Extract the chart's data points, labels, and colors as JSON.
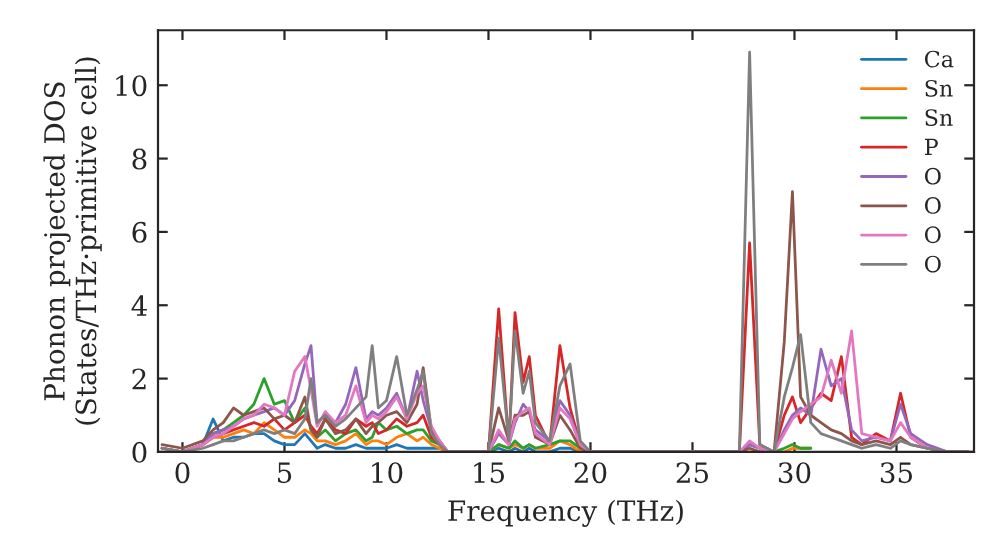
{
  "chart_data": {
    "type": "line",
    "xlabel": "Frequency (THz)",
    "ylabel": "Phonon projected DOS\n(States/THz·primitive cell)",
    "x": [
      -1,
      0,
      1,
      1.5,
      2,
      2.5,
      3,
      3.5,
      4,
      4.5,
      5,
      5.5,
      6,
      6.3,
      6.6,
      7,
      7.5,
      8,
      8.5,
      9,
      9.3,
      9.6,
      10,
      10.5,
      11,
      11.5,
      11.8,
      12.2,
      12.6,
      13,
      13.5,
      14,
      15,
      15.5,
      16,
      16.3,
      16.7,
      17,
      17.3,
      18,
      18.5,
      19,
      19.5,
      20,
      27.3,
      27.8,
      28.3,
      29,
      29.5,
      29.9,
      30.3,
      30.8,
      31.3,
      31.8,
      32.3,
      32.8,
      33.3,
      34,
      34.7,
      35.2,
      35.7,
      36.5,
      37.5,
      38.5
    ],
    "series": [
      {
        "name": "Ca",
        "color": "#1f77b4",
        "x": [
          -1,
          0,
          1,
          1.5,
          2,
          2.5,
          3,
          3.5,
          4,
          4.5,
          5,
          5.5,
          6,
          6.3,
          6.6,
          7,
          7.5,
          8,
          8.5,
          9,
          9.3,
          9.6,
          10,
          10.5,
          11,
          11.5,
          11.8,
          12.2,
          12.6,
          13,
          13.5,
          14,
          15,
          15.5,
          16,
          16.3,
          16.7,
          17,
          17.3,
          18,
          18.5,
          19,
          19.5,
          20
        ],
        "values": [
          0.1,
          0,
          0.2,
          0.9,
          0.3,
          0.4,
          0.4,
          0.5,
          0.5,
          0.3,
          0.2,
          0.2,
          0.5,
          0.3,
          0.1,
          0.2,
          0.1,
          0.1,
          0.2,
          0.1,
          0.1,
          0.1,
          0.1,
          0.2,
          0.1,
          0.1,
          0.1,
          0.1,
          0.1,
          0,
          0,
          0,
          0,
          0.1,
          0,
          0.1,
          0,
          0.1,
          0,
          0,
          0.1,
          0.1,
          0,
          0
        ]
      },
      {
        "name": "Sn",
        "color": "#ff7f0e",
        "x": [
          1,
          1.5,
          2,
          2.5,
          3,
          3.5,
          4,
          4.5,
          5,
          5.5,
          6,
          6.3,
          6.6,
          7,
          7.5,
          8,
          8.5,
          9,
          9.3,
          9.6,
          10,
          10.5,
          11,
          11.5,
          11.8,
          12.2,
          12.6,
          13,
          13.5,
          14,
          15,
          15.5,
          16,
          16.3,
          16.7,
          17,
          17.3,
          18,
          18.5,
          19,
          19.5,
          20,
          27.3,
          27.8,
          28.3,
          29,
          29.5,
          29.9,
          30.3,
          30.8
        ],
        "values": [
          0.2,
          0.4,
          0.4,
          0.5,
          0.6,
          0.5,
          0.8,
          0.6,
          0.4,
          0.4,
          0.6,
          0.5,
          0.3,
          0.3,
          0.2,
          0.3,
          0.5,
          0.2,
          0.3,
          0.3,
          0.2,
          0.4,
          0.5,
          0.3,
          0.4,
          0.2,
          0.1,
          0,
          0,
          0,
          0,
          0.2,
          0.1,
          0.2,
          0.1,
          0.2,
          0.1,
          0.1,
          0.3,
          0.2,
          0,
          0,
          0,
          0,
          0,
          0,
          0,
          0.1,
          0.1,
          0.1
        ]
      },
      {
        "name": "Sn",
        "color": "#2ca02c",
        "x": [
          1,
          1.5,
          2,
          2.5,
          3,
          3.5,
          4,
          4.5,
          5,
          5.5,
          6,
          6.3,
          6.6,
          7,
          7.5,
          8,
          8.5,
          9,
          9.3,
          9.6,
          10,
          10.5,
          11,
          11.5,
          11.8,
          12.2,
          12.6,
          13,
          13.5,
          14,
          15,
          15.5,
          16,
          16.3,
          16.7,
          17,
          17.3,
          18,
          18.5,
          19,
          19.5,
          20,
          27.3,
          27.8,
          28.3,
          29,
          29.5,
          29.9,
          30.3,
          30.8
        ],
        "values": [
          0.2,
          0.5,
          0.6,
          0.8,
          1.0,
          1.3,
          2.0,
          1.3,
          1.4,
          0.8,
          1.2,
          0.6,
          0.4,
          0.6,
          0.3,
          0.5,
          0.6,
          0.3,
          0.4,
          0.8,
          0.6,
          0.7,
          0.5,
          0.6,
          0.6,
          0.3,
          0.2,
          0,
          0,
          0,
          0,
          0.2,
          0.1,
          0.3,
          0.1,
          0.2,
          0.1,
          0.2,
          0.3,
          0.3,
          0.1,
          0,
          0,
          0.2,
          0.1,
          0,
          0.1,
          0.2,
          0.1,
          0.1
        ]
      },
      {
        "name": "P",
        "color": "#d62728",
        "values": [
          0.1,
          0,
          0.2,
          0.4,
          0.5,
          0.6,
          0.7,
          0.8,
          0.7,
          0.9,
          0.6,
          0.8,
          1.0,
          0.7,
          0.5,
          0.9,
          0.6,
          0.5,
          0.9,
          0.7,
          0.8,
          0.5,
          0.6,
          0.9,
          0.7,
          0.8,
          1.0,
          0.4,
          0.2,
          0,
          0,
          0,
          0,
          3.9,
          0.2,
          3.8,
          1.9,
          2.6,
          1.0,
          0.2,
          2.9,
          1.2,
          0.2,
          0,
          0,
          5.7,
          0.2,
          0,
          1.0,
          1.5,
          0.8,
          1.2,
          1.6,
          1.4,
          2.6,
          0.4,
          0.2,
          0.5,
          0.3,
          1.6,
          0.4,
          0.1,
          0,
          0
        ]
      },
      {
        "name": "O",
        "color": "#9467bd",
        "values": [
          0.1,
          0,
          0.2,
          0.5,
          0.6,
          0.7,
          0.9,
          1.0,
          1.1,
          1.2,
          1.0,
          1.4,
          2.4,
          2.9,
          0.8,
          1.0,
          0.8,
          1.3,
          2.3,
          0.9,
          1.1,
          1.0,
          1.2,
          1.6,
          0.9,
          2.2,
          1.4,
          0.6,
          0.3,
          0,
          0,
          0,
          0,
          0.5,
          0.2,
          0.8,
          1.3,
          1.1,
          0.6,
          0.3,
          1.4,
          1.0,
          0.2,
          0,
          0,
          0.2,
          0.1,
          0,
          0.6,
          1.0,
          1.2,
          1.0,
          2.8,
          1.8,
          2.0,
          0.6,
          0.3,
          0.4,
          0.3,
          1.3,
          0.5,
          0.2,
          0,
          0
        ]
      },
      {
        "name": "O",
        "color": "#8c564b",
        "values": [
          0.2,
          0.1,
          0.3,
          0.6,
          0.8,
          1.2,
          1.0,
          1.1,
          1.2,
          0.9,
          1.0,
          0.8,
          1.5,
          0.6,
          0.4,
          0.9,
          0.5,
          0.6,
          0.9,
          0.5,
          0.7,
          0.8,
          1.0,
          1.1,
          0.8,
          1.3,
          2.3,
          0.6,
          0.3,
          0,
          0,
          0,
          0,
          1.2,
          0.3,
          1.0,
          1.0,
          1.1,
          0.4,
          0.2,
          1.0,
          0.6,
          0.1,
          0,
          0,
          0.1,
          0,
          0,
          3.0,
          7.1,
          1.5,
          1.0,
          0.8,
          0.6,
          0.5,
          0.3,
          0.2,
          0.3,
          0.2,
          0.4,
          0.2,
          0.1,
          0,
          0
        ]
      },
      {
        "name": "O",
        "color": "#e377c2",
        "values": [
          0.1,
          0,
          0.2,
          0.4,
          0.5,
          0.7,
          0.9,
          1.0,
          1.3,
          1.2,
          1.0,
          2.2,
          2.6,
          1.7,
          0.7,
          1.1,
          0.8,
          1.0,
          1.8,
          0.8,
          1.0,
          0.9,
          1.1,
          1.5,
          0.9,
          1.6,
          1.8,
          0.7,
          0.3,
          0,
          0,
          0,
          0,
          0.6,
          0.2,
          0.9,
          1.1,
          1.2,
          0.5,
          0.2,
          1.2,
          0.9,
          0.2,
          0,
          0,
          0.3,
          0.1,
          0,
          0.5,
          0.9,
          1.1,
          1.3,
          1.5,
          2.5,
          1.6,
          3.3,
          0.5,
          0.4,
          0.3,
          0.8,
          0.4,
          0.1,
          0,
          0
        ]
      },
      {
        "name": "O",
        "color": "#7f7f7f",
        "values": [
          0.1,
          0,
          0.1,
          0.2,
          0.3,
          0.3,
          0.4,
          0.5,
          0.6,
          0.5,
          0.6,
          0.5,
          0.9,
          2.0,
          0.8,
          1.0,
          0.7,
          0.9,
          1.2,
          1.5,
          2.9,
          1.2,
          1.4,
          2.6,
          1.0,
          1.7,
          2.2,
          0.5,
          0.2,
          0,
          0,
          0,
          0,
          3.1,
          0.3,
          3.3,
          1.6,
          2.2,
          0.8,
          0.3,
          1.8,
          2.4,
          0.3,
          0,
          0,
          10.9,
          0.2,
          0,
          1.5,
          2.3,
          3.2,
          0.8,
          0.5,
          0.4,
          0.3,
          0.2,
          0.1,
          0.2,
          0.1,
          0.3,
          0.2,
          0.1,
          0,
          0
        ]
      }
    ],
    "xlim": [
      -1.2,
      38.8
    ],
    "ylim": [
      0,
      11.5
    ],
    "xticks": [
      0,
      5,
      10,
      15,
      20,
      25,
      30,
      35
    ],
    "yticks": [
      0,
      2,
      4,
      6,
      8,
      10
    ],
    "legend": "top right",
    "grid": false,
    "marker": "none",
    "line_style": "solid"
  }
}
